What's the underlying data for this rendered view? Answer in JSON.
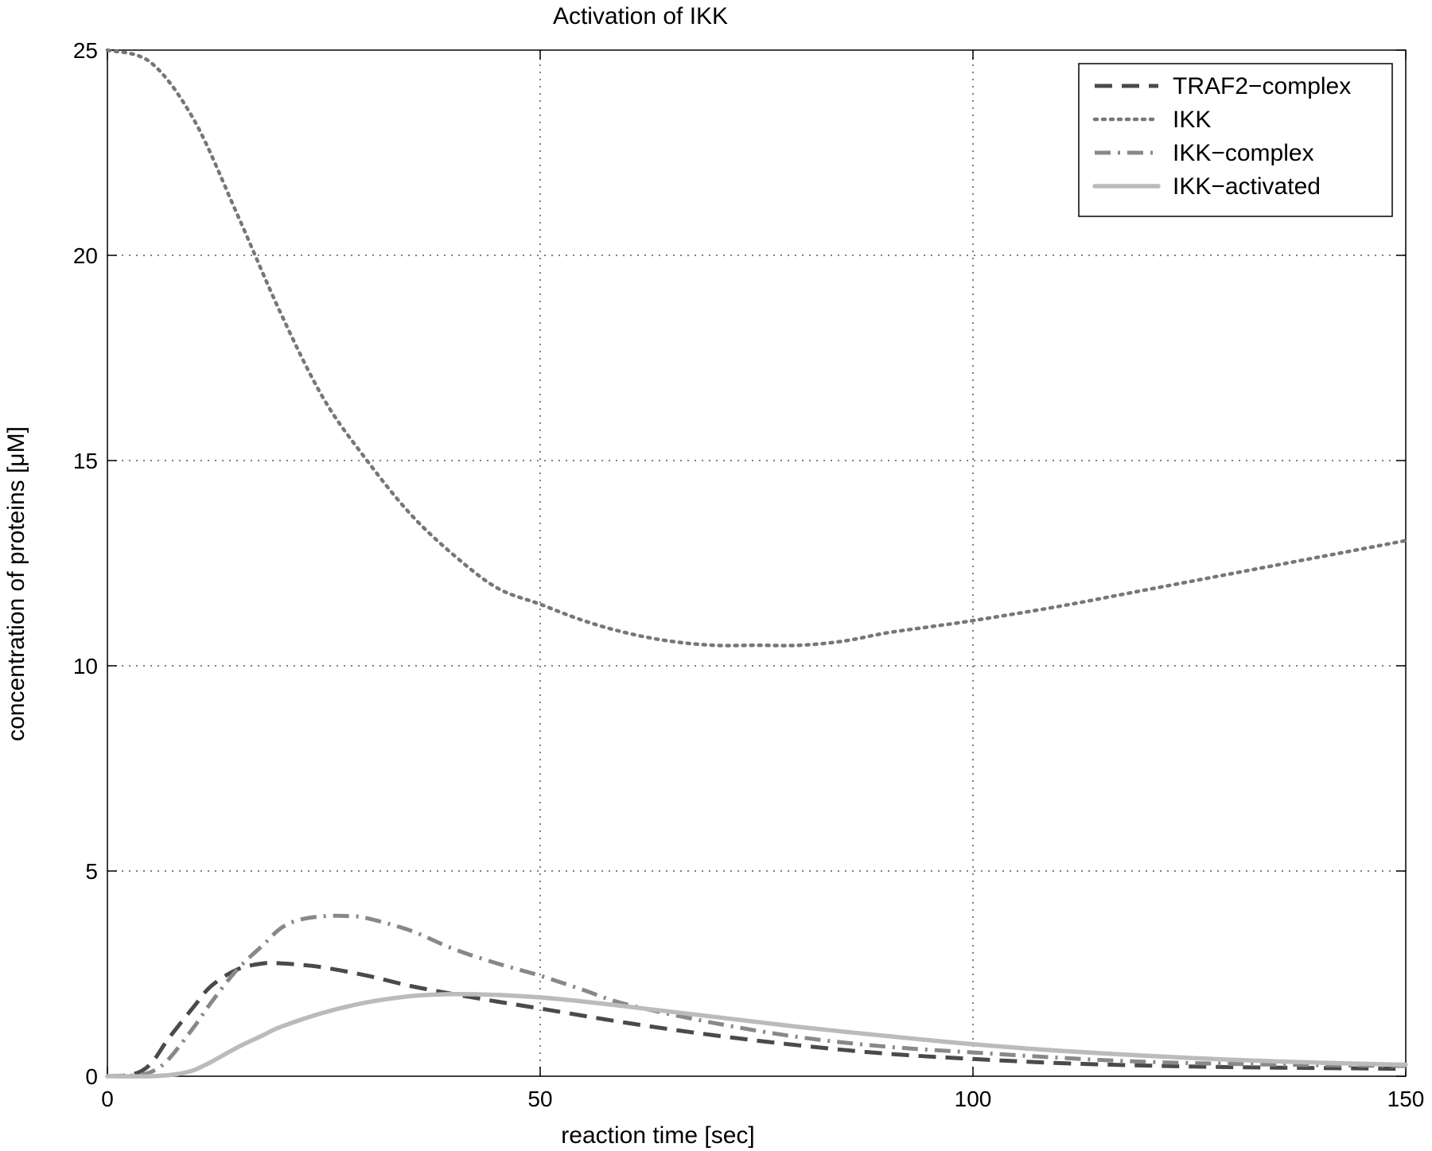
{
  "chart_data": {
    "type": "line",
    "title": "Activation of IKK",
    "xlabel": "reaction time [sec]",
    "ylabel": "concentration of proteins [μM]",
    "xlim": [
      0,
      150
    ],
    "ylim": [
      0,
      25
    ],
    "x_ticks": [
      0,
      50,
      100,
      150
    ],
    "y_ticks": [
      0,
      5,
      10,
      15,
      20,
      25
    ],
    "grid": true,
    "legend_position": "top-right",
    "series": [
      {
        "name": "TRAF2−complex",
        "style": "dashed",
        "color": "#4a4a4a",
        "x": [
          0,
          3,
          5,
          7,
          10,
          12,
          15,
          18,
          20,
          22,
          25,
          30,
          35,
          40,
          45,
          50,
          60,
          70,
          80,
          90,
          100,
          110,
          120,
          130,
          140,
          150
        ],
        "y": [
          0,
          0.05,
          0.3,
          0.9,
          1.7,
          2.2,
          2.6,
          2.75,
          2.75,
          2.72,
          2.65,
          2.45,
          2.2,
          2.0,
          1.82,
          1.65,
          1.3,
          1.0,
          0.75,
          0.55,
          0.42,
          0.32,
          0.26,
          0.22,
          0.2,
          0.18
        ]
      },
      {
        "name": "IKK",
        "style": "dotted",
        "color": "#777777",
        "x": [
          0,
          5,
          10,
          15,
          20,
          25,
          30,
          35,
          40,
          45,
          50,
          55,
          60,
          65,
          70,
          75,
          80,
          85,
          90,
          95,
          100,
          110,
          120,
          130,
          140,
          150
        ],
        "y": [
          25,
          24.7,
          23.3,
          21.0,
          18.6,
          16.5,
          15.0,
          13.7,
          12.7,
          11.9,
          11.5,
          11.1,
          10.8,
          10.6,
          10.5,
          10.5,
          10.5,
          10.6,
          10.8,
          10.95,
          11.1,
          11.45,
          11.85,
          12.25,
          12.65,
          13.05
        ]
      },
      {
        "name": "IKK−complex",
        "style": "dashdot",
        "color": "#888888",
        "x": [
          0,
          3,
          5,
          7,
          10,
          12,
          15,
          18,
          20,
          22,
          25,
          28,
          30,
          35,
          40,
          45,
          50,
          55,
          60,
          70,
          80,
          90,
          100,
          110,
          120,
          130,
          140,
          150
        ],
        "y": [
          0,
          0.02,
          0.1,
          0.4,
          1.2,
          1.8,
          2.6,
          3.2,
          3.6,
          3.8,
          3.9,
          3.9,
          3.85,
          3.55,
          3.1,
          2.75,
          2.45,
          2.1,
          1.75,
          1.3,
          0.95,
          0.72,
          0.58,
          0.45,
          0.35,
          0.3,
          0.27,
          0.25
        ]
      },
      {
        "name": "IKK−activated",
        "style": "solid",
        "color": "#bbbbbb",
        "x": [
          0,
          5,
          8,
          10,
          12,
          15,
          18,
          20,
          25,
          30,
          35,
          40,
          45,
          50,
          55,
          60,
          70,
          80,
          90,
          100,
          110,
          120,
          130,
          140,
          150
        ],
        "y": [
          0,
          0.0,
          0.05,
          0.15,
          0.35,
          0.7,
          1.0,
          1.2,
          1.55,
          1.8,
          1.95,
          2.0,
          1.98,
          1.92,
          1.82,
          1.7,
          1.45,
          1.2,
          0.98,
          0.78,
          0.62,
          0.5,
          0.4,
          0.33,
          0.28
        ]
      }
    ]
  }
}
